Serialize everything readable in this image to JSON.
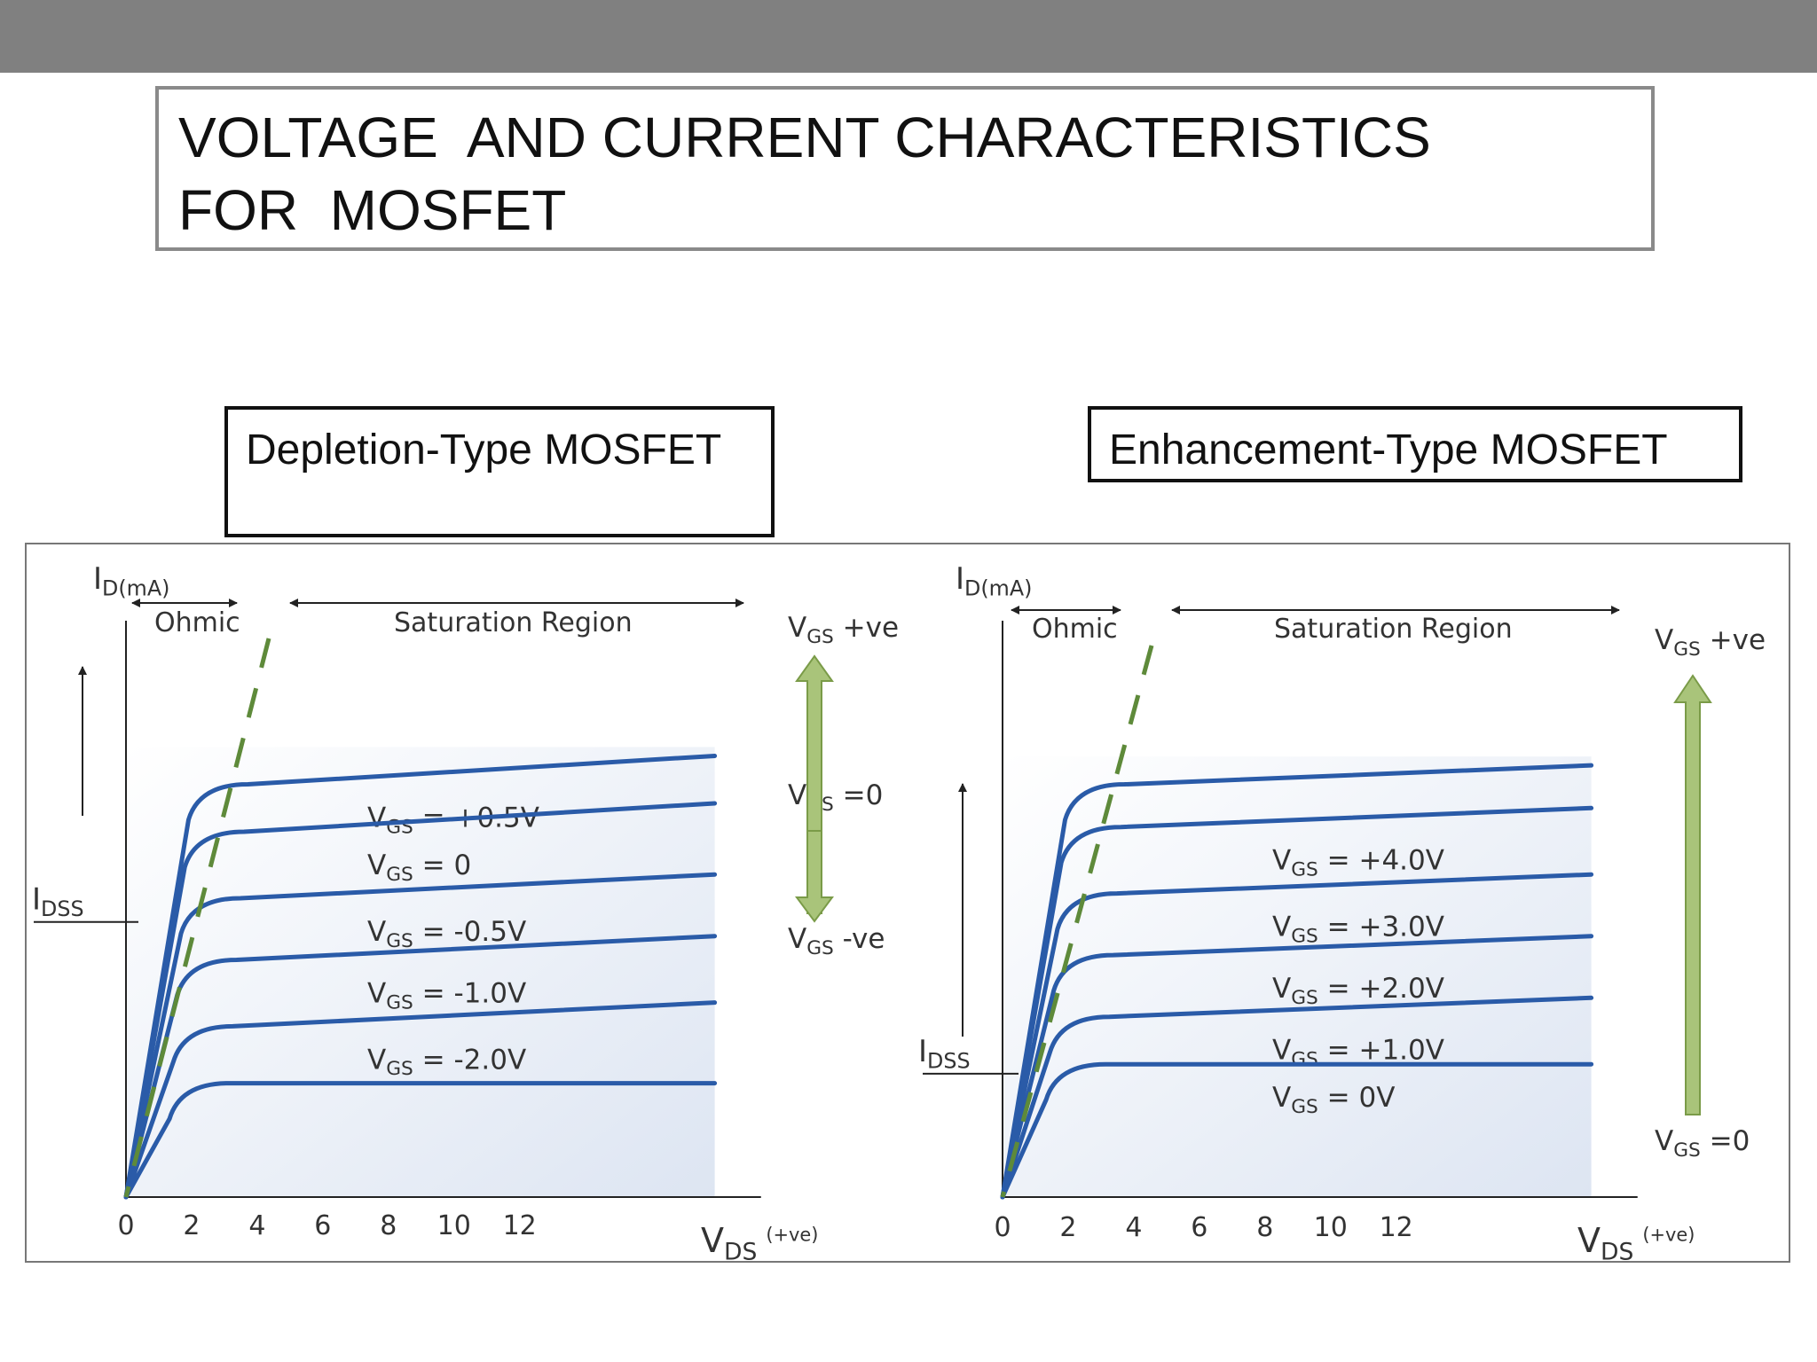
{
  "title": {
    "line1": "VOLTAGE  AND CURRENT CHARACTERISTICS",
    "line2": "FOR  MOSFET"
  },
  "labels": {
    "depletion": "Depletion-Type MOSFET",
    "enhancement": "Enhancement-Type MOSFET"
  },
  "colors": {
    "curve": "#2a5ba8",
    "boundary": "#5e8a3a",
    "arrow_fill": "#a9c47a",
    "arrow_stroke": "#7a9b48",
    "axis": "#222222",
    "region_fill": "#dde5f2"
  },
  "chart_data": [
    {
      "type": "line",
      "title": "",
      "ylabel": "I",
      "ylabel_sub": "D(mA)",
      "xlabel": "V",
      "xlabel_sub": "DS",
      "xlabel_sup": "(+ve)",
      "x_ticks": [
        0,
        2,
        4,
        6,
        8,
        10,
        12
      ],
      "xlim": [
        0,
        15
      ],
      "ylim": [
        0,
        10
      ],
      "region_labels": {
        "ohmic": "Ohmic",
        "saturation": "Saturation Region"
      },
      "idss": {
        "main": "I",
        "sub": "DSS",
        "level": 5.8
      },
      "series": [
        {
          "name": "V_GS = +0.5V",
          "label_prefix": "V",
          "label_sub": "GS",
          "label_value": " = +0.5V",
          "saturation_start": 8.7,
          "saturation_end": 9.3
        },
        {
          "name": "V_GS = 0",
          "label_prefix": "V",
          "label_sub": "GS",
          "label_value": " = 0",
          "saturation_start": 7.7,
          "saturation_end": 8.3
        },
        {
          "name": "V_GS = -0.5V",
          "label_prefix": "V",
          "label_sub": "GS",
          "label_value": " = -0.5V",
          "saturation_start": 6.3,
          "saturation_end": 6.8
        },
        {
          "name": "V_GS = -1.0V",
          "label_prefix": "V",
          "label_sub": "GS",
          "label_value": " = -1.0V",
          "saturation_start": 5.0,
          "saturation_end": 5.5
        },
        {
          "name": "V_GS = -2.0V",
          "label_prefix": "V",
          "label_sub": "GS",
          "label_value": " = -2.0V",
          "saturation_start": 3.6,
          "saturation_end": 4.1
        },
        {
          "name": "",
          "label_prefix": "",
          "label_sub": "",
          "label_value": "",
          "saturation_start": 2.4,
          "saturation_end": 2.4
        }
      ],
      "vgs_indicators": {
        "top": " +ve",
        "middle": " =0",
        "bottom": " -ve",
        "prefix": "V",
        "sub": "GS"
      }
    },
    {
      "type": "line",
      "title": "",
      "ylabel": "I",
      "ylabel_sub": "D(mA)",
      "xlabel": "V",
      "xlabel_sub": "DS",
      "xlabel_sup": "(+ve)",
      "x_ticks": [
        0,
        2,
        4,
        6,
        8,
        10,
        12
      ],
      "xlim": [
        0,
        15
      ],
      "ylim": [
        0,
        10
      ],
      "region_labels": {
        "ohmic": "Ohmic",
        "saturation": "Saturation Region"
      },
      "idss": {
        "main": "I",
        "sub": "DSS",
        "level": 2.6
      },
      "series": [
        {
          "name": "",
          "label_prefix": "",
          "label_sub": "",
          "label_value": "",
          "saturation_start": 8.7,
          "saturation_end": 9.1
        },
        {
          "name": "V_GS = +4.0V",
          "label_prefix": "V",
          "label_sub": "GS",
          "label_value": " = +4.0V",
          "saturation_start": 7.8,
          "saturation_end": 8.2
        },
        {
          "name": "V_GS = +3.0V",
          "label_prefix": "V",
          "label_sub": "GS",
          "label_value": " = +3.0V",
          "saturation_start": 6.4,
          "saturation_end": 6.8
        },
        {
          "name": "V_GS = +2.0V",
          "label_prefix": "V",
          "label_sub": "GS",
          "label_value": " = +2.0V",
          "saturation_start": 5.1,
          "saturation_end": 5.5
        },
        {
          "name": "V_GS = +1.0V",
          "label_prefix": "V",
          "label_sub": "GS",
          "label_value": " = +1.0V",
          "saturation_start": 3.8,
          "saturation_end": 4.2
        },
        {
          "name": "V_GS = 0V",
          "label_prefix": "V",
          "label_sub": "GS",
          "label_value": " = 0V",
          "saturation_start": 2.8,
          "saturation_end": 2.8
        }
      ],
      "vgs_indicators": {
        "top": " +ve",
        "middle": "",
        "bottom": " =0",
        "prefix": "V",
        "sub": "GS"
      }
    }
  ]
}
